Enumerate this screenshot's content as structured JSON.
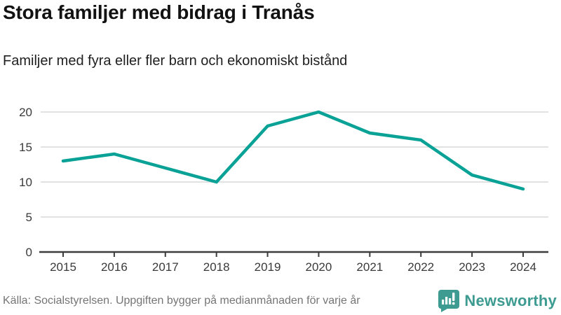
{
  "header": {
    "title": "Stora familjer med bidrag i Tranås",
    "subtitle": "Familjer med fyra eller fler barn och ekonomiskt bistånd"
  },
  "footer": {
    "source": "Källa: Socialstyrelsen. Uppgiften bygger på medianmånaden för varje år",
    "brand": "Newsworthy"
  },
  "colors": {
    "line": "#0aa296",
    "grid": "#e2e2e2",
    "axis": "#3c3c3c",
    "tick_label": "#3a3a3a",
    "title_text": "#121212",
    "footer_text": "#757575",
    "brand_teal": "#3d9b91"
  },
  "chart_data": {
    "type": "line",
    "categories": [
      "2015",
      "2016",
      "2017",
      "2018",
      "2019",
      "2020",
      "2021",
      "2022",
      "2023",
      "2024"
    ],
    "values": [
      13,
      14,
      12,
      10,
      18,
      20,
      17,
      16,
      11,
      9
    ],
    "series": [
      {
        "name": "Familjer med fyra eller fler barn och ekonomiskt bistånd",
        "values": [
          13,
          14,
          12,
          10,
          18,
          20,
          17,
          16,
          11,
          9
        ]
      }
    ],
    "title": "Stora familjer med bidrag i Tranås",
    "subtitle": "Familjer med fyra eller fler barn och ekonomiskt bistånd",
    "xlabel": "",
    "ylabel": "",
    "ylim": [
      0,
      20
    ],
    "yticks": [
      0,
      5,
      10,
      15,
      20
    ],
    "grid": true,
    "legend": "none"
  }
}
